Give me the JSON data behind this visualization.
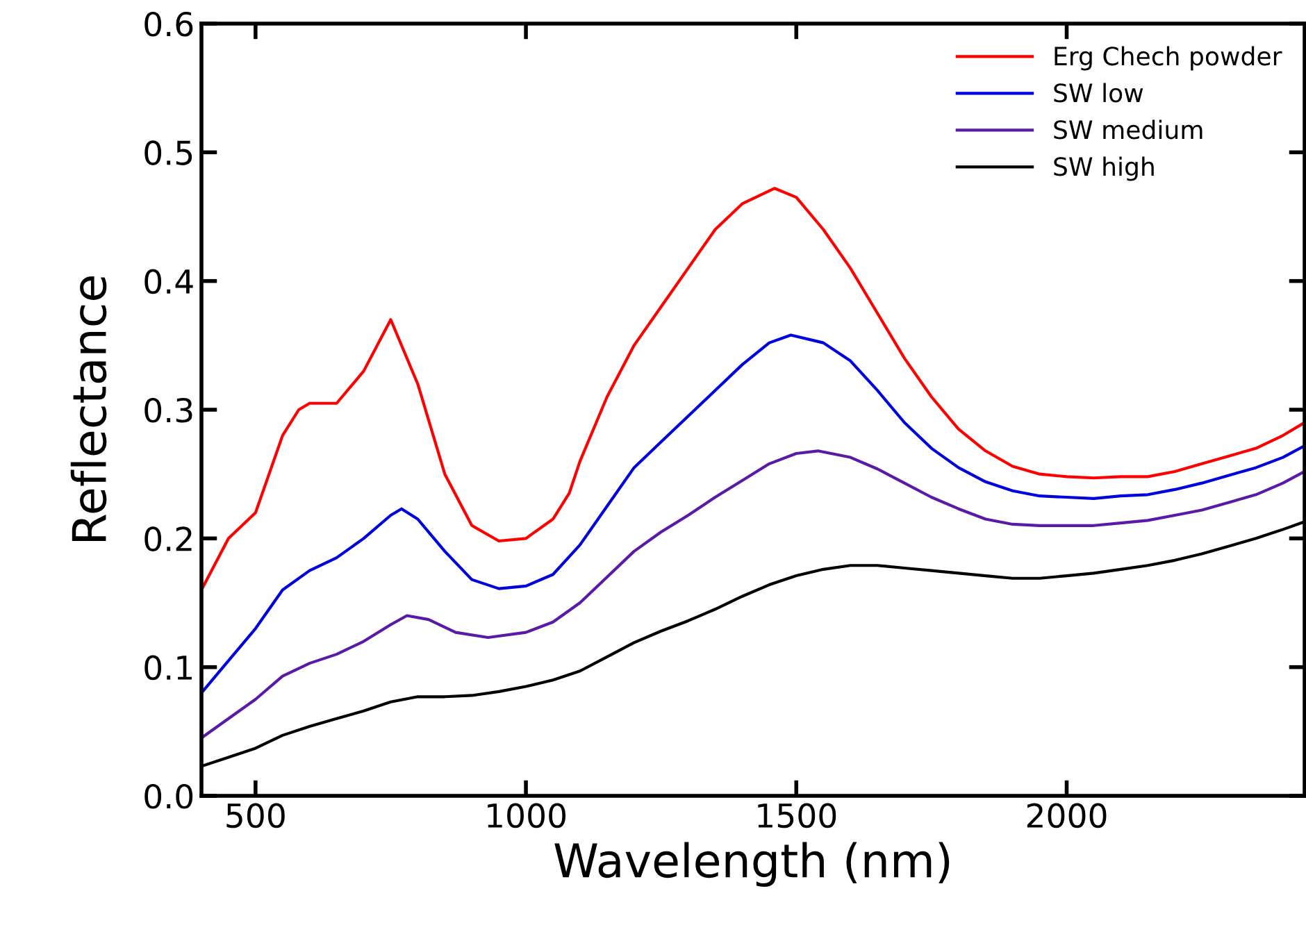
{
  "chart_data": {
    "type": "line",
    "xlabel": "Wavelength (nm)",
    "ylabel": "Reflectance",
    "xlim": [
      400,
      2440
    ],
    "xticks": [
      500,
      1000,
      1500,
      2000
    ],
    "ylim": [
      0,
      0.6
    ],
    "yticks": [
      {
        "value": 0,
        "label": "0.0"
      },
      0.1,
      0.2,
      0.3,
      0.4,
      0.5,
      0.6
    ],
    "grid": false,
    "legend": "top right",
    "line_style": "solid",
    "marker": "none",
    "series": [
      {
        "name": "Erg Chech powder",
        "color": "#ff0000",
        "x": [
          400,
          450,
          500,
          550,
          580,
          600,
          650,
          700,
          750,
          800,
          850,
          900,
          950,
          1000,
          1050,
          1080,
          1100,
          1150,
          1200,
          1250,
          1300,
          1350,
          1400,
          1460,
          1500,
          1550,
          1600,
          1650,
          1700,
          1750,
          1800,
          1850,
          1900,
          1950,
          2000,
          2050,
          2100,
          2150,
          2200,
          2250,
          2300,
          2350,
          2400,
          2440
        ],
        "values": [
          0.16,
          0.2,
          0.22,
          0.28,
          0.3,
          0.305,
          0.305,
          0.33,
          0.37,
          0.32,
          0.25,
          0.21,
          0.198,
          0.2,
          0.215,
          0.235,
          0.26,
          0.31,
          0.35,
          0.38,
          0.41,
          0.44,
          0.46,
          0.472,
          0.465,
          0.44,
          0.41,
          0.375,
          0.34,
          0.31,
          0.285,
          0.268,
          0.256,
          0.25,
          0.248,
          0.247,
          0.248,
          0.248,
          0.252,
          0.258,
          0.264,
          0.27,
          0.28,
          0.29
        ]
      },
      {
        "name": "SW low",
        "color": "#0000dd",
        "x": [
          400,
          450,
          500,
          550,
          600,
          650,
          700,
          750,
          770,
          800,
          850,
          900,
          950,
          1000,
          1050,
          1100,
          1150,
          1200,
          1250,
          1300,
          1350,
          1400,
          1450,
          1490,
          1550,
          1600,
          1650,
          1700,
          1750,
          1800,
          1850,
          1900,
          1950,
          2000,
          2050,
          2100,
          2150,
          2200,
          2250,
          2300,
          2350,
          2400,
          2440
        ],
        "values": [
          0.08,
          0.105,
          0.13,
          0.16,
          0.175,
          0.185,
          0.2,
          0.218,
          0.223,
          0.215,
          0.19,
          0.168,
          0.161,
          0.163,
          0.172,
          0.195,
          0.225,
          0.255,
          0.275,
          0.295,
          0.315,
          0.335,
          0.352,
          0.358,
          0.352,
          0.338,
          0.315,
          0.29,
          0.27,
          0.255,
          0.244,
          0.237,
          0.233,
          0.232,
          0.231,
          0.233,
          0.234,
          0.238,
          0.243,
          0.249,
          0.255,
          0.263,
          0.272
        ]
      },
      {
        "name": "SW medium",
        "color": "#5a1aa8",
        "x": [
          400,
          450,
          500,
          550,
          600,
          650,
          700,
          750,
          780,
          820,
          870,
          930,
          1000,
          1050,
          1100,
          1150,
          1200,
          1250,
          1300,
          1350,
          1400,
          1450,
          1500,
          1540,
          1600,
          1650,
          1700,
          1750,
          1800,
          1850,
          1900,
          1950,
          2000,
          2050,
          2100,
          2150,
          2200,
          2250,
          2300,
          2350,
          2400,
          2440
        ],
        "values": [
          0.045,
          0.06,
          0.075,
          0.093,
          0.103,
          0.11,
          0.12,
          0.133,
          0.14,
          0.137,
          0.127,
          0.123,
          0.127,
          0.135,
          0.15,
          0.17,
          0.19,
          0.205,
          0.218,
          0.232,
          0.245,
          0.258,
          0.266,
          0.268,
          0.263,
          0.254,
          0.243,
          0.232,
          0.223,
          0.215,
          0.211,
          0.21,
          0.21,
          0.21,
          0.212,
          0.214,
          0.218,
          0.222,
          0.228,
          0.234,
          0.243,
          0.252
        ]
      },
      {
        "name": "SW high",
        "color": "#000000",
        "x": [
          400,
          450,
          500,
          550,
          600,
          650,
          700,
          750,
          800,
          850,
          900,
          950,
          1000,
          1050,
          1100,
          1150,
          1200,
          1250,
          1300,
          1350,
          1400,
          1450,
          1500,
          1550,
          1600,
          1650,
          1700,
          1750,
          1800,
          1850,
          1900,
          1950,
          2000,
          2050,
          2100,
          2150,
          2200,
          2250,
          2300,
          2350,
          2400,
          2440
        ],
        "values": [
          0.023,
          0.03,
          0.037,
          0.047,
          0.054,
          0.06,
          0.066,
          0.073,
          0.077,
          0.077,
          0.078,
          0.081,
          0.085,
          0.09,
          0.097,
          0.108,
          0.119,
          0.128,
          0.136,
          0.145,
          0.155,
          0.164,
          0.171,
          0.176,
          0.179,
          0.179,
          0.177,
          0.175,
          0.173,
          0.171,
          0.169,
          0.169,
          0.171,
          0.173,
          0.176,
          0.179,
          0.183,
          0.188,
          0.194,
          0.2,
          0.207,
          0.213
        ]
      }
    ]
  }
}
